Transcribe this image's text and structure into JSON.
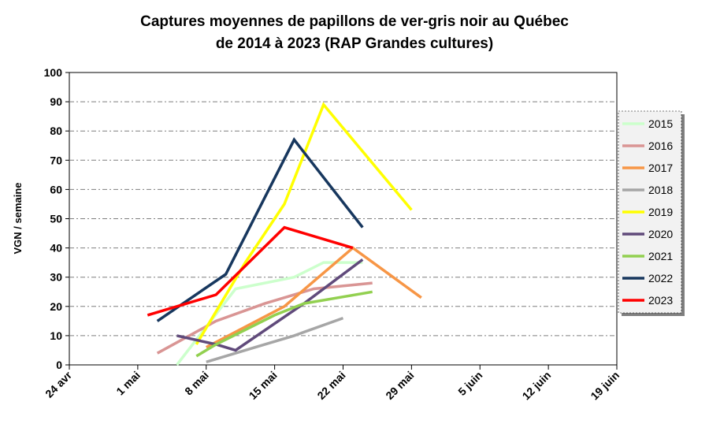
{
  "chart_data": {
    "type": "line",
    "title_lines": [
      "Captures moyennes de papillons de ver-gris noir au Québec",
      "de 2014 à 2023 (RAP Grandes cultures)"
    ],
    "xlabel": "",
    "ylabel": "VGN / semaine",
    "x_tick_labels": [
      "24 avr",
      "1 mai",
      "8 mai",
      "15 mai",
      "22 mai",
      "29 mai",
      "5 juin",
      "12 juin",
      "19 juin"
    ],
    "xlim_days_from_24avr": [
      0,
      56
    ],
    "ylim": [
      0,
      100
    ],
    "y_ticks": [
      0,
      10,
      20,
      30,
      40,
      50,
      60,
      70,
      80,
      90,
      100
    ],
    "grid": "horizontal dash-dot",
    "legend_position": "right",
    "series": [
      {
        "name": "2015",
        "color": "#ccffcc",
        "points": [
          [
            "4 mai",
            0
          ],
          [
            "10 mai",
            26
          ],
          [
            "16 mai",
            30
          ],
          [
            "19 mai",
            35
          ],
          [
            "23 mai",
            35
          ]
        ]
      },
      {
        "name": "2016",
        "color": "#d99594",
        "points": [
          [
            "2 mai",
            4
          ],
          [
            "8 mai",
            15
          ],
          [
            "13 mai",
            21
          ],
          [
            "18 mai",
            26
          ],
          [
            "24 mai",
            28
          ]
        ]
      },
      {
        "name": "2017",
        "color": "#f79646",
        "points": [
          [
            "7 mai",
            6
          ],
          [
            "15 mai",
            20
          ],
          [
            "22 mai",
            40
          ],
          [
            "29 mai",
            23
          ]
        ]
      },
      {
        "name": "2018",
        "color": "#a6a6a6",
        "points": [
          [
            "7 mai",
            1
          ],
          [
            "12 mai",
            6
          ],
          [
            "16 mai",
            10
          ],
          [
            "21 mai",
            16
          ]
        ]
      },
      {
        "name": "2019",
        "color": "#ffff00",
        "points": [
          [
            "6 mai",
            7
          ],
          [
            "11 mai",
            35
          ],
          [
            "15 mai",
            55
          ],
          [
            "19 mai",
            89
          ],
          [
            "28 mai",
            53
          ]
        ]
      },
      {
        "name": "2020",
        "color": "#604a7b",
        "points": [
          [
            "4 mai",
            10
          ],
          [
            "8 mai",
            7
          ],
          [
            "10 mai",
            5
          ],
          [
            "17 mai",
            21
          ],
          [
            "23 mai",
            36
          ]
        ]
      },
      {
        "name": "2021",
        "color": "#92d050",
        "points": [
          [
            "6 mai",
            3
          ],
          [
            "8 mai",
            7
          ],
          [
            "14 mai",
            17
          ],
          [
            "17 mai",
            21
          ],
          [
            "24 mai",
            25
          ]
        ]
      },
      {
        "name": "2022",
        "color": "#17375e",
        "points": [
          [
            "2 mai",
            15
          ],
          [
            "9 mai",
            31
          ],
          [
            "16 mai",
            77
          ],
          [
            "23 mai",
            47
          ]
        ]
      },
      {
        "name": "2023",
        "color": "#ff0000",
        "points": [
          [
            "1 mai",
            17
          ],
          [
            "8 mai",
            24
          ],
          [
            "15 mai",
            47
          ],
          [
            "22 mai",
            40
          ]
        ]
      }
    ]
  }
}
